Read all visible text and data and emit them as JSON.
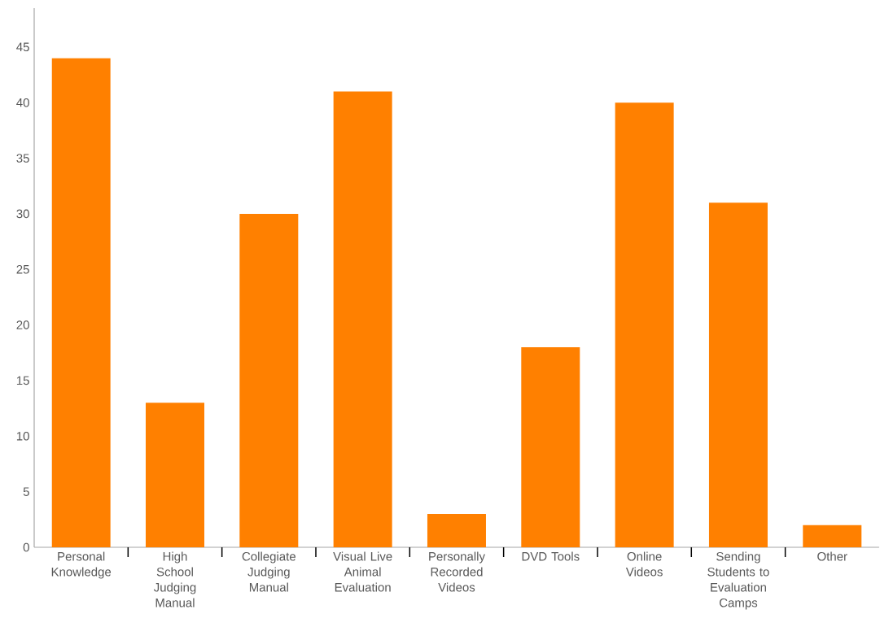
{
  "chart_data": {
    "type": "bar",
    "categories": [
      "Personal Knowledge",
      "High School Judging Manual",
      "Collegiate Judging Manual",
      "Visual Live Animal Evaluation",
      "Personally Recorded Videos",
      "DVD Tools",
      "Online Videos",
      "Sending Students to Evaluation Camps",
      "Other"
    ],
    "values": [
      44,
      13,
      30,
      41,
      3,
      18,
      40,
      31,
      2
    ],
    "color": "#ff8000",
    "ylim": [
      0,
      48.5
    ],
    "yticks": [
      0,
      5,
      10,
      15,
      20,
      25,
      30,
      35,
      40,
      45
    ],
    "grid": false
  }
}
